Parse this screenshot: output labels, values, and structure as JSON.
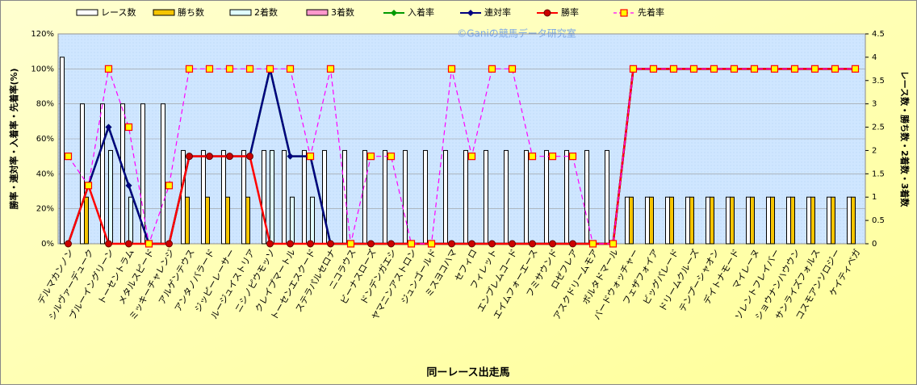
{
  "chart_data": {
    "type": "combo",
    "watermark": "©Ganiの競馬データ研究室",
    "x_label": "同ーレース出走馬",
    "y_label": "勝率・連対率・入着率・先着率(%)",
    "y2_label": "レース数・勝ち数・2着数・3着数",
    "categories": [
      "デルマカンノン",
      "シルヴァーデューク",
      "ブルーイングリーン",
      "トーセントラム",
      "メタルスピード",
      "ミッキーチャレンジ",
      "アルゲンテウス",
      "アンタノバラード",
      "ジッピーレーサー",
      "ルージュイストリア",
      "ニシノピウモッソ",
      "クレイプマートル",
      "トーセンエスクード",
      "ステラパルセロナ",
      "ニコラウス",
      "ビーナスローズ",
      "ドンデンガエシ",
      "ヤマニンアストロン",
      "ジュンゴールド",
      "ミスヨコハマ",
      "セフィロ",
      "フィレット",
      "エンブレムコード",
      "エイムフォーエース",
      "フミサウンド",
      "ロゼフレア",
      "アスクドリームモア",
      "ボルタドマール",
      "バードウォッチャー",
      "フェザフォイア",
      "ビッグパレード",
      "ドリームクルーズ",
      "テンプーシャオン",
      "デイトナモード",
      "マイレーヌ",
      "ソレントフレイバー",
      "ショウナンハウウン",
      "サンライズフォルス",
      "コスモアンソロジー",
      "ケイティベガ"
    ],
    "series": [
      {
        "name": "レース数",
        "kind": "bar",
        "axis": "y2",
        "color": "#ffffff",
        "values": [
          4,
          3,
          3,
          3,
          3,
          3,
          2,
          2,
          2,
          2,
          2,
          2,
          2,
          2,
          2,
          2,
          2,
          2,
          2,
          2,
          2,
          2,
          2,
          2,
          2,
          2,
          2,
          2,
          1,
          1,
          1,
          1,
          1,
          1,
          1,
          1,
          1,
          1,
          1,
          1
        ]
      },
      {
        "name": "勝ち数",
        "kind": "bar",
        "axis": "y2",
        "color": "#f5c400",
        "values": [
          0,
          1,
          0,
          0,
          0,
          0,
          1,
          1,
          1,
          1,
          0,
          0,
          0,
          0,
          0,
          0,
          0,
          0,
          0,
          0,
          0,
          0,
          0,
          0,
          0,
          0,
          0,
          0,
          1,
          1,
          1,
          1,
          1,
          1,
          1,
          1,
          1,
          1,
          1,
          1
        ]
      },
      {
        "name": "2着数",
        "kind": "bar",
        "axis": "y2",
        "color": "#e0ffff",
        "values": [
          0,
          0,
          2,
          1,
          0,
          0,
          0,
          0,
          0,
          0,
          2,
          1,
          1,
          0,
          0,
          0,
          0,
          0,
          0,
          0,
          0,
          0,
          0,
          0,
          0,
          0,
          0,
          0,
          0,
          0,
          0,
          0,
          0,
          0,
          0,
          0,
          0,
          0,
          0,
          0
        ]
      },
      {
        "name": "3着数",
        "kind": "bar",
        "axis": "y2",
        "color": "#ff99cc",
        "values": [
          0,
          0,
          0,
          0,
          0,
          0,
          0,
          0,
          0,
          0,
          0,
          0,
          0,
          0,
          0,
          0,
          0,
          0,
          0,
          0,
          0,
          0,
          0,
          0,
          0,
          0,
          0,
          0,
          0,
          0,
          0,
          0,
          0,
          0,
          0,
          0,
          0,
          0,
          0,
          0
        ]
      },
      {
        "name": "入着率",
        "kind": "line",
        "marker": "diamond",
        "color": "#009900",
        "values": [
          0,
          33.3,
          66.7,
          33.3,
          0,
          0,
          50,
          50,
          50,
          50,
          100,
          50,
          50,
          0,
          0,
          0,
          0,
          0,
          0,
          0,
          0,
          0,
          0,
          0,
          0,
          0,
          0,
          0,
          100,
          100,
          100,
          100,
          100,
          100,
          100,
          100,
          100,
          100,
          100,
          100
        ]
      },
      {
        "name": "連対率",
        "kind": "line",
        "marker": "diamond",
        "color": "#000080",
        "values": [
          0,
          33.3,
          66.7,
          33.3,
          0,
          0,
          50,
          50,
          50,
          50,
          100,
          50,
          50,
          0,
          0,
          0,
          0,
          0,
          0,
          0,
          0,
          0,
          0,
          0,
          0,
          0,
          0,
          0,
          100,
          100,
          100,
          100,
          100,
          100,
          100,
          100,
          100,
          100,
          100,
          100
        ]
      },
      {
        "name": "勝率",
        "kind": "line",
        "marker": "circle",
        "color": "#ff0000",
        "values": [
          0,
          33.3,
          0,
          0,
          0,
          0,
          50,
          50,
          50,
          50,
          0,
          0,
          0,
          0,
          0,
          0,
          0,
          0,
          0,
          0,
          0,
          0,
          0,
          0,
          0,
          0,
          0,
          0,
          100,
          100,
          100,
          100,
          100,
          100,
          100,
          100,
          100,
          100,
          100,
          100
        ]
      },
      {
        "name": "先着率",
        "kind": "line",
        "marker": "square",
        "dashed": true,
        "color": "#ff00ff",
        "values": [
          50,
          33.3,
          100,
          66.7,
          0,
          33.3,
          100,
          100,
          100,
          100,
          100,
          100,
          50,
          100,
          0,
          50,
          50,
          0,
          0,
          100,
          50,
          100,
          100,
          50,
          50,
          50,
          0,
          0,
          100,
          100,
          100,
          100,
          100,
          100,
          100,
          100,
          100,
          100,
          100,
          100
        ]
      }
    ],
    "ylim": [
      0,
      120
    ],
    "yticks": [
      {
        "value": 0,
        "label": "0%"
      },
      {
        "value": 20,
        "label": "20%"
      },
      {
        "value": 40,
        "label": "40%"
      },
      {
        "value": 60,
        "label": "60%"
      },
      {
        "value": 80,
        "label": "80%"
      },
      {
        "value": 100,
        "label": "100%"
      },
      {
        "value": 120,
        "label": "120%"
      }
    ],
    "y2lim": [
      0,
      4.5
    ],
    "y2ticks": [
      0,
      0.5,
      1,
      1.5,
      2,
      2.5,
      3,
      3.5,
      4,
      4.5
    ],
    "grid": true
  }
}
